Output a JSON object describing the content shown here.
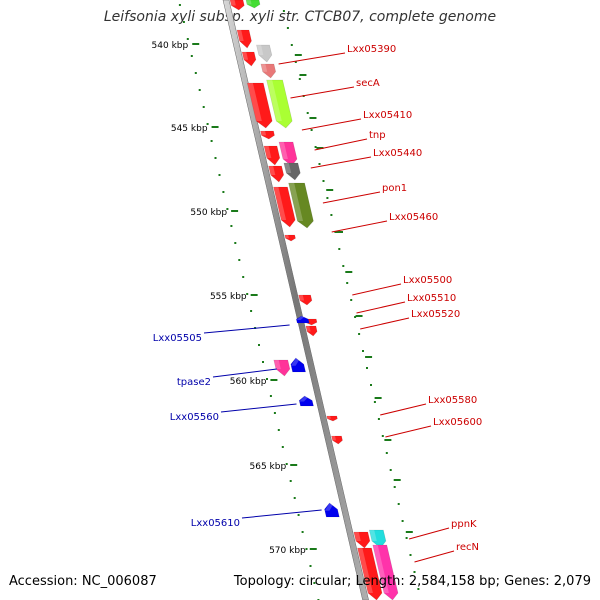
{
  "title": "Leifsonia xyli subsp. xyli str. CTCB07, complete genome",
  "footer": {
    "accession": "Accession: NC_006087",
    "summary": "Topology: circular; Length: 2,584,158 bp; Genes: 2,079"
  },
  "colors": {
    "backbone": "#888888",
    "forward_label": "#cc0000",
    "reverse_label": "#0000aa",
    "tick": "#1a7a1a"
  },
  "scale_labels": [
    {
      "kbp": 540,
      "text": "540 kbp"
    },
    {
      "kbp": 545,
      "text": "545 kbp"
    },
    {
      "kbp": 550,
      "text": "550 kbp"
    },
    {
      "kbp": 555,
      "text": "555 kbp"
    },
    {
      "kbp": 560,
      "text": "560 kbp"
    },
    {
      "kbp": 565,
      "text": "565 kbp"
    },
    {
      "kbp": 570,
      "text": "570 kbp"
    }
  ],
  "forward_labels": [
    "Lxx05390",
    "secA",
    "Lxx05410",
    "tnp",
    "Lxx05440",
    "pon1",
    "Lxx05460",
    "Lxx05500",
    "Lxx05510",
    "Lxx05520",
    "Lxx05580",
    "Lxx05600",
    "ppnK",
    "recN"
  ],
  "reverse_labels": [
    "Lxx05505",
    "tpase2",
    "Lxx05560",
    "Lxx05610"
  ]
}
